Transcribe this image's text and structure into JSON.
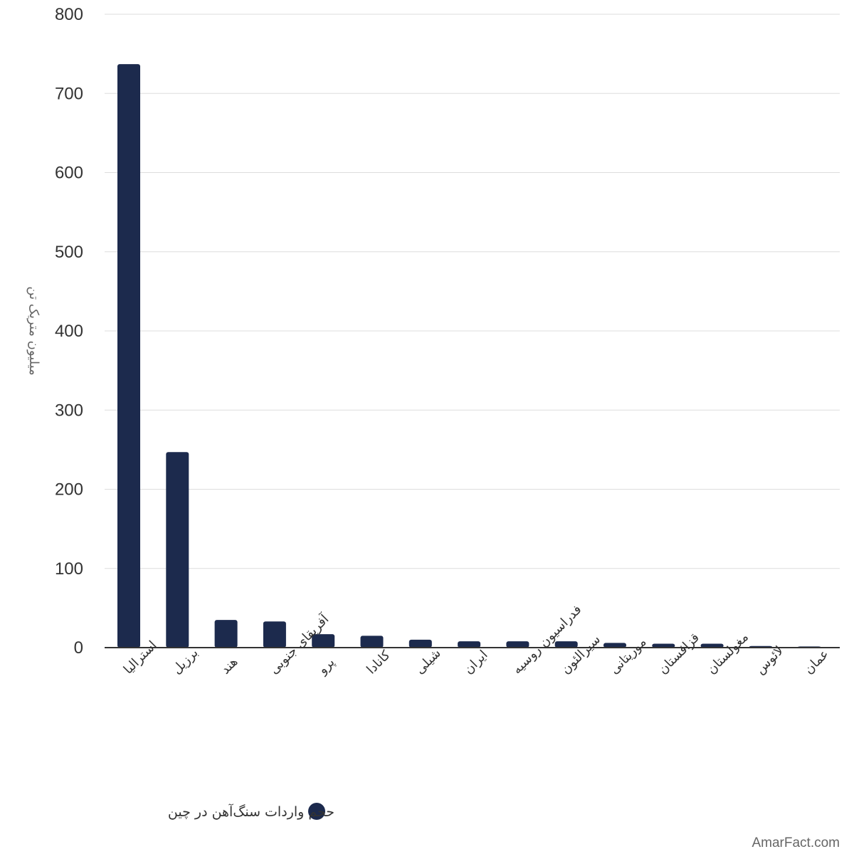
{
  "chart_data": {
    "type": "bar",
    "categories": [
      "استرالیا",
      "برزیل",
      "هند",
      "آفریقای جنوبی",
      "پرو",
      "کانادا",
      "شیلی",
      "ایران",
      "فدراسیون روسیه",
      "سیرالئون",
      "موریتانی",
      "قزاقستان",
      "مغولستان",
      "لائوس",
      "عمان"
    ],
    "series": [
      {
        "name": "حجم واردات سنگ‌آهن در چین",
        "values": [
          737,
          247,
          35,
          33,
          17,
          15,
          10,
          8,
          8,
          8,
          6,
          5,
          5,
          2,
          1.5
        ],
        "color": "#1c2a4d"
      }
    ],
    "ylabel": "میلیون متریک تن",
    "ylim": [
      0,
      800
    ],
    "yticks": [
      "0",
      "100",
      "200",
      "300",
      "400",
      "500",
      "600",
      "700",
      "800"
    ],
    "grid": true,
    "legend_position": "bottom"
  },
  "watermark": "AmarFact.com"
}
